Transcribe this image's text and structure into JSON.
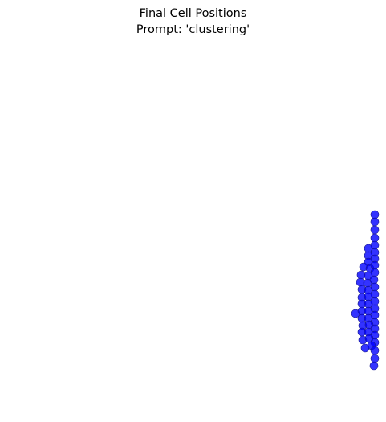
{
  "chart_data": {
    "type": "scatter",
    "title": "Final Cell Positions",
    "subtitle": "Prompt: 'clustering'",
    "xlabel": "",
    "ylabel": "",
    "axes_visible": false,
    "grid": false,
    "legend": "none",
    "marker_color": "#0000ff",
    "marker_edge_color": "#1a1a8c",
    "marker_alpha": 0.8,
    "points": [
      [
        467,
        267
      ],
      [
        467,
        276
      ],
      [
        467,
        286
      ],
      [
        467,
        296
      ],
      [
        467,
        305
      ],
      [
        459,
        309
      ],
      [
        467,
        314
      ],
      [
        459,
        318
      ],
      [
        467,
        322
      ],
      [
        459,
        326
      ],
      [
        453,
        332
      ],
      [
        461,
        334
      ],
      [
        467,
        330
      ],
      [
        467,
        339
      ],
      [
        450,
        342
      ],
      [
        459,
        343
      ],
      [
        449,
        351
      ],
      [
        458,
        352
      ],
      [
        466,
        348
      ],
      [
        467,
        357
      ],
      [
        451,
        360
      ],
      [
        459,
        361
      ],
      [
        467,
        366
      ],
      [
        451,
        370
      ],
      [
        459,
        369
      ],
      [
        467,
        375
      ],
      [
        451,
        378
      ],
      [
        459,
        378
      ],
      [
        467,
        384
      ],
      [
        443,
        390
      ],
      [
        451,
        387
      ],
      [
        459,
        387
      ],
      [
        467,
        392
      ],
      [
        451,
        396
      ],
      [
        459,
        396
      ],
      [
        467,
        401
      ],
      [
        452,
        405
      ],
      [
        460,
        404
      ],
      [
        467,
        409
      ],
      [
        451,
        413
      ],
      [
        459,
        413
      ],
      [
        467,
        417
      ],
      [
        452,
        423
      ],
      [
        460,
        421
      ],
      [
        467,
        426
      ],
      [
        455,
        433
      ],
      [
        463,
        430
      ],
      [
        467,
        436
      ],
      [
        467,
        446
      ],
      [
        466,
        455
      ]
    ]
  }
}
